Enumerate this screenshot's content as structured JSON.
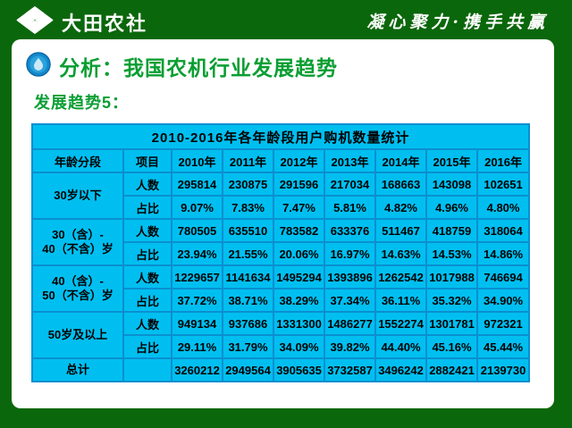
{
  "topbar": {
    "logo_text": "大田农社",
    "slogan": "凝心聚力·携手共赢"
  },
  "page": {
    "title": "分析：我国农机行业发展趋势",
    "trend_label": "发展趋势5："
  },
  "table": {
    "title": "2010-2016年各年龄段用户购机数量统计",
    "columns": [
      "年龄分段",
      "项目",
      "2010年",
      "2011年",
      "2012年",
      "2013年",
      "2014年",
      "2015年",
      "2016年"
    ],
    "groups": [
      {
        "age": "30岁以下",
        "rows": [
          {
            "label": "人数",
            "values": [
              "295814",
              "230875",
              "291596",
              "217034",
              "168663",
              "143098",
              "102651"
            ]
          },
          {
            "label": "占比",
            "values": [
              "9.07%",
              "7.83%",
              "7.47%",
              "5.81%",
              "4.82%",
              "4.96%",
              "4.80%"
            ]
          }
        ]
      },
      {
        "age": "30（含）-\n40（不含）岁",
        "rows": [
          {
            "label": "人数",
            "values": [
              "780505",
              "635510",
              "783582",
              "633376",
              "511467",
              "418759",
              "318064"
            ]
          },
          {
            "label": "占比",
            "values": [
              "23.94%",
              "21.55%",
              "20.06%",
              "16.97%",
              "14.63%",
              "14.53%",
              "14.86%"
            ]
          }
        ]
      },
      {
        "age": "40（含）-\n50（不含）岁",
        "rows": [
          {
            "label": "人数",
            "values": [
              "1229657",
              "1141634",
              "1495294",
              "1393896",
              "1262542",
              "1017988",
              "746694"
            ]
          },
          {
            "label": "占比",
            "values": [
              "37.72%",
              "38.71%",
              "38.29%",
              "37.34%",
              "36.11%",
              "35.32%",
              "34.90%"
            ]
          }
        ]
      },
      {
        "age": "50岁及以上",
        "rows": [
          {
            "label": "人数",
            "values": [
              "949134",
              "937686",
              "1331300",
              "1486277",
              "1552274",
              "1301781",
              "972321"
            ]
          },
          {
            "label": "占比",
            "values": [
              "29.11%",
              "31.79%",
              "34.09%",
              "39.82%",
              "44.40%",
              "45.16%",
              "45.44%"
            ]
          }
        ]
      }
    ],
    "total": {
      "label": "总计",
      "values": [
        "3260212",
        "2949564",
        "3905635",
        "3732587",
        "3496242",
        "2882421",
        "2139730"
      ]
    }
  },
  "colors": {
    "frame_green": "#0b670b",
    "title_green": "#0a9e32",
    "table_bg": "#00bff0",
    "table_grid": "#0a8fd0",
    "table_outer": "#0070c0",
    "text_dark": "#000000"
  }
}
